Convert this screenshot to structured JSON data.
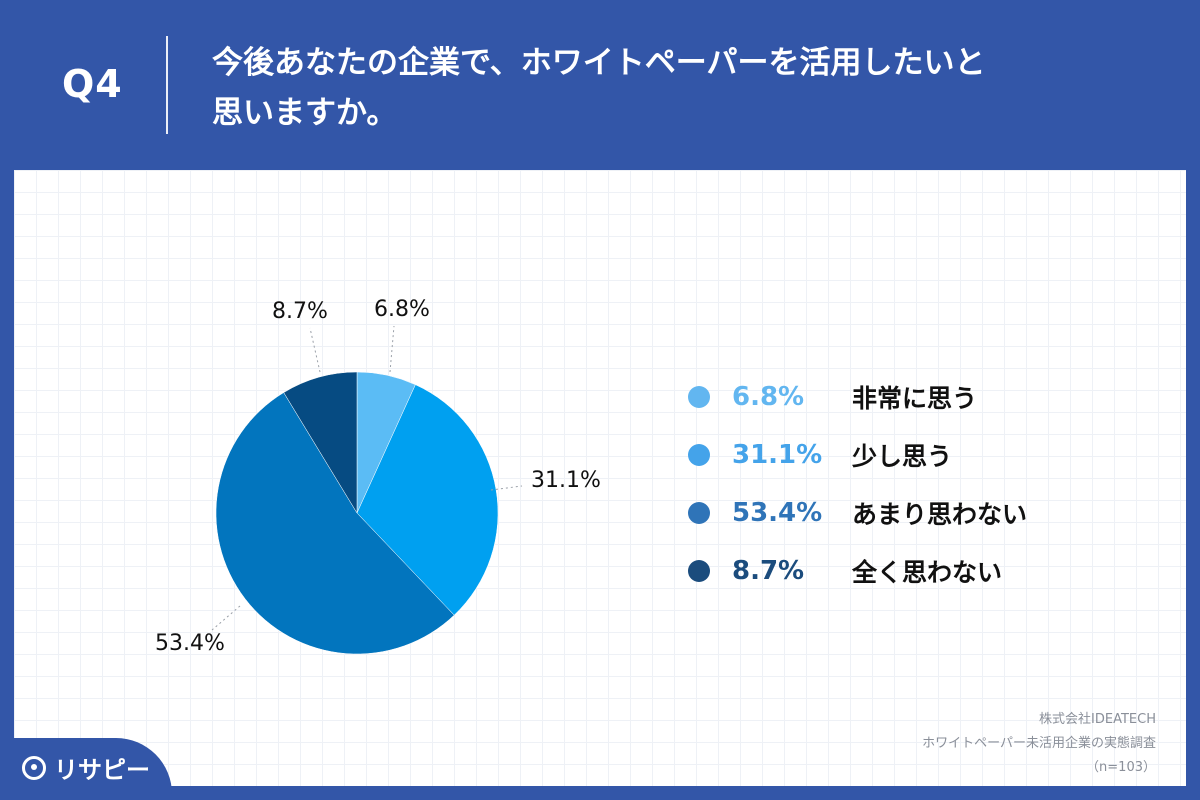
{
  "header": {
    "question_label": "Q4",
    "question_text": "今後あなたの企業で、ホワイトペーパーを活用したいと\n思いますか。"
  },
  "chart_data": {
    "type": "pie",
    "title": "",
    "start": "12 o'clock",
    "direction": "clockwise",
    "slices": [
      {
        "label": "非常に思う",
        "value": 6.8,
        "value_label": "6.8%",
        "color": "#5bbcf5",
        "legend_color": "#62b6f0"
      },
      {
        "label": "少し思う",
        "value": 31.1,
        "value_label": "31.1%",
        "color": "#00a0f0",
        "legend_color": "#44a3ea"
      },
      {
        "label": "あまり思わない",
        "value": 53.4,
        "value_label": "53.4%",
        "color": "#0275be",
        "legend_color": "#2f74b8"
      },
      {
        "label": "全く思わない",
        "value": 8.7,
        "value_label": "8.7%",
        "color": "#064b82",
        "legend_color": "#1b4c7d"
      }
    ]
  },
  "source": {
    "company": "株式会社IDEATECH",
    "survey": "ホワイトペーパー未活用企業の実態調査",
    "n": "（n=103）"
  },
  "logo": {
    "text": "リサピー",
    "icon": "magnifier-logo-icon"
  }
}
